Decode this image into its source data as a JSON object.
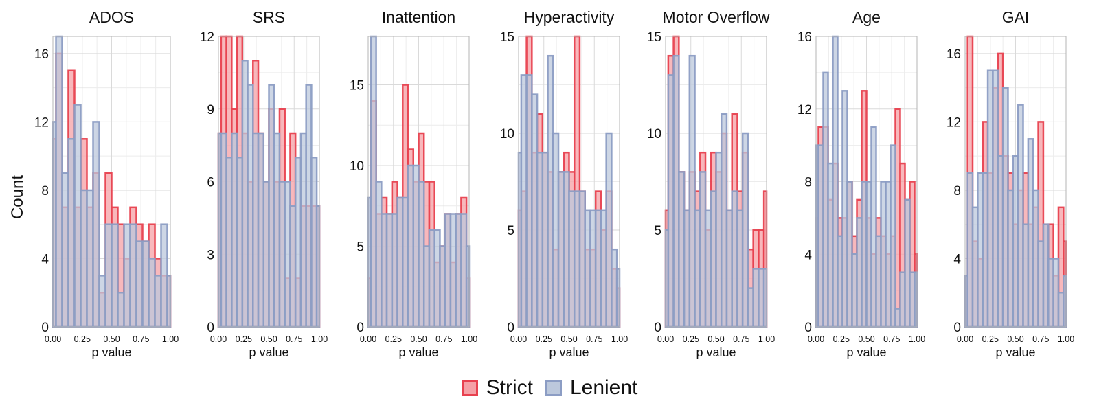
{
  "legend": [
    {
      "label": "Strict",
      "fill": "#f5a0a6",
      "stroke": "#e8414f"
    },
    {
      "label": "Lenient",
      "fill": "#bcc8dc",
      "stroke": "#8c9dc4"
    }
  ],
  "chart_data": [
    {
      "type": "bar",
      "title": "ADOS",
      "xlabel": "p value",
      "ylabel": "Count",
      "xlim": [
        0,
        1
      ],
      "ylim": [
        0,
        17
      ],
      "yticks": [
        0,
        4,
        8,
        12,
        16
      ],
      "xticks": [
        0,
        0.25,
        0.5,
        0.75,
        1
      ],
      "xticklabels": [
        "0.00",
        "0.25",
        "0.50",
        "0.75",
        "1.00"
      ],
      "grid": true,
      "legend": "bottom",
      "series": [
        {
          "name": "Strict",
          "values": [
            11,
            16,
            7,
            15,
            7,
            11,
            7,
            9,
            2,
            9,
            7,
            6,
            4,
            7,
            6,
            5,
            6,
            4,
            3,
            3
          ]
        },
        {
          "name": "Lenient",
          "values": [
            12,
            17,
            9,
            11,
            13,
            8,
            8,
            12,
            3,
            6,
            6,
            2,
            6,
            6,
            5,
            5,
            4,
            3,
            6,
            3
          ]
        }
      ]
    },
    {
      "type": "bar",
      "title": "SRS",
      "xlabel": "p value",
      "ylabel": "",
      "xlim": [
        0,
        1
      ],
      "ylim": [
        0,
        12
      ],
      "yticks": [
        0,
        3,
        6,
        9,
        12
      ],
      "xticks": [
        0,
        0.25,
        0.5,
        0.75,
        1
      ],
      "xticklabels": [
        "0.00",
        "0.25",
        "0.50",
        "0.75",
        "1.00"
      ],
      "grid": true,
      "legend": "bottom",
      "series": [
        {
          "name": "Strict",
          "values": [
            8,
            12,
            12,
            9,
            12,
            8,
            6,
            11,
            8,
            6,
            9,
            6,
            9,
            2,
            8,
            2,
            5,
            5,
            5,
            5
          ]
        },
        {
          "name": "Lenient",
          "values": [
            8,
            8,
            7,
            8,
            7,
            11,
            10,
            8,
            8,
            6,
            10,
            8,
            6,
            6,
            5,
            7,
            8,
            10,
            7,
            5
          ]
        }
      ]
    },
    {
      "type": "bar",
      "title": "Inattention",
      "xlabel": "p value",
      "ylabel": "",
      "xlim": [
        0,
        1
      ],
      "ylim": [
        0,
        18
      ],
      "yticks": [
        0,
        5,
        10,
        15
      ],
      "xticks": [
        0,
        0.25,
        0.5,
        0.75,
        1
      ],
      "xticklabels": [
        "0.00",
        "0.25",
        "0.50",
        "0.75",
        "1.00"
      ],
      "grid": true,
      "legend": "bottom",
      "series": [
        {
          "name": "Strict",
          "values": [
            3,
            14,
            7,
            8,
            7,
            9,
            8,
            15,
            11,
            9,
            12,
            9,
            9,
            4,
            5,
            7,
            4,
            7,
            8,
            3
          ]
        },
        {
          "name": "Lenient",
          "values": [
            8,
            18,
            9,
            7,
            7,
            7,
            8,
            8,
            10,
            10,
            9,
            5,
            6,
            6,
            5,
            7,
            7,
            7,
            7,
            5
          ]
        }
      ]
    },
    {
      "type": "bar",
      "title": "Hyperactivity",
      "xlabel": "p value",
      "ylabel": "",
      "xlim": [
        0,
        1
      ],
      "ylim": [
        0,
        15
      ],
      "yticks": [
        0,
        5,
        10,
        15
      ],
      "xticks": [
        0,
        0.25,
        0.5,
        0.75,
        1
      ],
      "xticklabels": [
        "0.00",
        "0.25",
        "0.50",
        "0.75",
        "1.00"
      ],
      "grid": true,
      "legend": "bottom",
      "series": [
        {
          "name": "Strict",
          "values": [
            6,
            7,
            15,
            9,
            11,
            9,
            8,
            4,
            8,
            9,
            8,
            15,
            7,
            4,
            4,
            7,
            5,
            7,
            3,
            2
          ]
        },
        {
          "name": "Lenient",
          "values": [
            9,
            13,
            13,
            12,
            9,
            9,
            14,
            10,
            8,
            8,
            7,
            7,
            7,
            6,
            6,
            6,
            6,
            10,
            4,
            3
          ]
        }
      ]
    },
    {
      "type": "bar",
      "title": "Motor Overflow",
      "xlabel": "p value",
      "ylabel": "",
      "xlim": [
        0,
        1
      ],
      "ylim": [
        0,
        15
      ],
      "yticks": [
        0,
        5,
        10,
        15
      ],
      "xticks": [
        0,
        0.25,
        0.5,
        0.75,
        1
      ],
      "xticklabels": [
        "0.00",
        "0.25",
        "0.50",
        "0.75",
        "1.00"
      ],
      "grid": true,
      "legend": "bottom",
      "series": [
        {
          "name": "Strict",
          "values": [
            6,
            14,
            15,
            8,
            6,
            8,
            7,
            9,
            5,
            9,
            8,
            10,
            6,
            11,
            7,
            9,
            4,
            5,
            5,
            7
          ]
        },
        {
          "name": "Lenient",
          "values": [
            5,
            13,
            14,
            8,
            6,
            14,
            6,
            8,
            6,
            7,
            9,
            11,
            6,
            7,
            6,
            10,
            2,
            3,
            3,
            3
          ]
        }
      ]
    },
    {
      "type": "bar",
      "title": "Age",
      "xlabel": "p value",
      "ylabel": "",
      "xlim": [
        0,
        1
      ],
      "ylim": [
        0,
        16
      ],
      "yticks": [
        0,
        4,
        8,
        12,
        16
      ],
      "xticks": [
        0,
        0.25,
        0.5,
        0.75,
        1
      ],
      "xticklabels": [
        "0.00",
        "0.25",
        "0.50",
        "0.75",
        "1.00"
      ],
      "grid": true,
      "legend": "bottom",
      "series": [
        {
          "name": "Strict",
          "values": [
            6,
            11,
            11,
            7,
            9,
            6,
            6,
            8,
            5,
            7,
            13,
            6,
            4,
            6,
            5,
            4,
            5,
            12,
            9,
            7,
            8,
            4
          ]
        },
        {
          "name": "Lenient",
          "values": [
            10,
            10,
            14,
            9,
            16,
            5,
            13,
            8,
            4,
            6,
            8,
            8,
            11,
            5,
            8,
            8,
            10,
            1,
            3,
            7,
            3,
            3
          ]
        }
      ]
    },
    {
      "type": "bar",
      "title": "GAI",
      "xlabel": "p value",
      "ylabel": "",
      "xlim": [
        0,
        1
      ],
      "ylim": [
        0,
        17
      ],
      "yticks": [
        0,
        4,
        8,
        12,
        16
      ],
      "xticks": [
        0,
        0.25,
        0.5,
        0.75,
        1
      ],
      "xticklabels": [
        "0.00",
        "0.25",
        "0.50",
        "0.75",
        "1.00"
      ],
      "grid": true,
      "legend": "bottom",
      "series": [
        {
          "name": "Strict",
          "values": [
            3,
            17,
            5,
            4,
            12,
            9,
            14,
            16,
            10,
            9,
            6,
            8,
            9,
            6,
            7,
            12,
            6,
            6,
            3,
            7,
            5
          ]
        },
        {
          "name": "Lenient",
          "values": [
            3,
            9,
            7,
            9,
            9,
            15,
            15,
            10,
            14,
            8,
            10,
            13,
            6,
            11,
            8,
            5,
            6,
            4,
            4,
            2,
            3
          ]
        }
      ]
    }
  ]
}
